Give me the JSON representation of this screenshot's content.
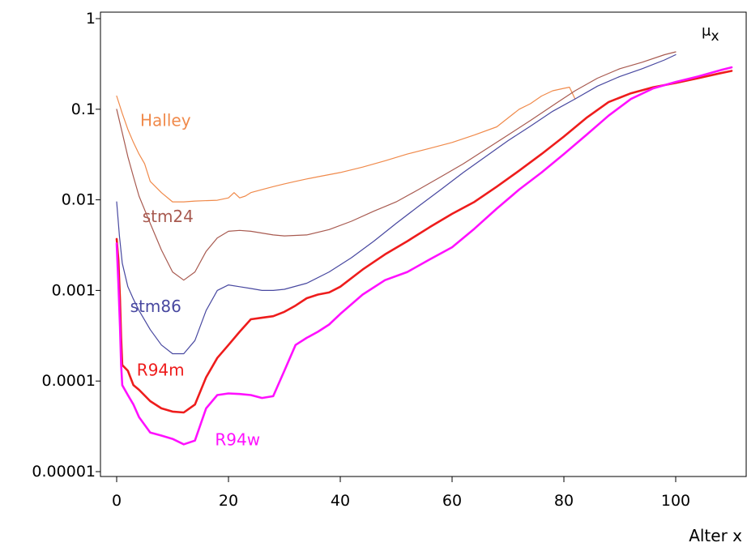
{
  "chart_data": {
    "type": "line",
    "title": "",
    "xlabel": "Alter x",
    "ylabel": "μx",
    "ylabel_main": "μ",
    "ylabel_sub": "x",
    "xscale": "linear",
    "yscale": "log",
    "xlim": [
      -2,
      112
    ],
    "ylim": [
      1e-05,
      1
    ],
    "xticks": [
      0,
      20,
      40,
      60,
      80,
      100
    ],
    "xtick_labels": [
      "0",
      "20",
      "40",
      "60",
      "80",
      "100"
    ],
    "yticks": [
      1e-05,
      0.0001,
      0.001,
      0.01,
      0.1,
      1
    ],
    "ytick_labels": [
      "0.00001",
      "0.0001",
      "0.001",
      "0.01",
      "0.1",
      "1"
    ],
    "grid": false,
    "legend": "inline labels",
    "series": [
      {
        "name": "Halley",
        "color": "#f08a4b",
        "width": "thin",
        "label_at": [
          4.2,
          0.065
        ],
        "points": [
          [
            0,
            0.14
          ],
          [
            1,
            0.09
          ],
          [
            2,
            0.06
          ],
          [
            3,
            0.043
          ],
          [
            4,
            0.032
          ],
          [
            5,
            0.025
          ],
          [
            6,
            0.016
          ],
          [
            8,
            0.012
          ],
          [
            10,
            0.0095
          ],
          [
            12,
            0.0095
          ],
          [
            14,
            0.0097
          ],
          [
            18,
            0.0099
          ],
          [
            20,
            0.0105
          ],
          [
            21,
            0.012
          ],
          [
            22,
            0.0105
          ],
          [
            23,
            0.011
          ],
          [
            24,
            0.012
          ],
          [
            26,
            0.013
          ],
          [
            28,
            0.014
          ],
          [
            30,
            0.015
          ],
          [
            32,
            0.016
          ],
          [
            34,
            0.017
          ],
          [
            36,
            0.018
          ],
          [
            40,
            0.02
          ],
          [
            44,
            0.023
          ],
          [
            48,
            0.027
          ],
          [
            52,
            0.032
          ],
          [
            56,
            0.037
          ],
          [
            60,
            0.043
          ],
          [
            64,
            0.052
          ],
          [
            68,
            0.064
          ],
          [
            70,
            0.08
          ],
          [
            72,
            0.1
          ],
          [
            74,
            0.115
          ],
          [
            76,
            0.14
          ],
          [
            78,
            0.16
          ],
          [
            80,
            0.17
          ],
          [
            81,
            0.175
          ],
          [
            82,
            0.13
          ]
        ]
      },
      {
        "name": "stm24",
        "color": "#a85a50",
        "width": "thin",
        "label_at": [
          4.6,
          0.0057
        ],
        "points": [
          [
            0,
            0.1
          ],
          [
            1,
            0.055
          ],
          [
            2,
            0.03
          ],
          [
            3,
            0.018
          ],
          [
            4,
            0.011
          ],
          [
            6,
            0.0055
          ],
          [
            8,
            0.0028
          ],
          [
            10,
            0.0016
          ],
          [
            12,
            0.0013
          ],
          [
            14,
            0.0016
          ],
          [
            16,
            0.0027
          ],
          [
            18,
            0.0038
          ],
          [
            20,
            0.0045
          ],
          [
            22,
            0.0046
          ],
          [
            24,
            0.0045
          ],
          [
            26,
            0.0043
          ],
          [
            28,
            0.0041
          ],
          [
            30,
            0.004
          ],
          [
            34,
            0.0041
          ],
          [
            38,
            0.0047
          ],
          [
            42,
            0.0058
          ],
          [
            46,
            0.0075
          ],
          [
            50,
            0.0095
          ],
          [
            54,
            0.013
          ],
          [
            58,
            0.018
          ],
          [
            62,
            0.025
          ],
          [
            66,
            0.036
          ],
          [
            70,
            0.052
          ],
          [
            74,
            0.075
          ],
          [
            78,
            0.11
          ],
          [
            82,
            0.16
          ],
          [
            86,
            0.22
          ],
          [
            90,
            0.28
          ],
          [
            94,
            0.33
          ],
          [
            98,
            0.4
          ],
          [
            100,
            0.43
          ]
        ]
      },
      {
        "name": "stm86",
        "color": "#4848a0",
        "width": "thin",
        "label_at": [
          2.4,
          0.00058
        ],
        "points": [
          [
            0,
            0.0095
          ],
          [
            0.5,
            0.004
          ],
          [
            1,
            0.002
          ],
          [
            2,
            0.0011
          ],
          [
            3,
            0.0008
          ],
          [
            4,
            0.0006
          ],
          [
            6,
            0.00037
          ],
          [
            8,
            0.00025
          ],
          [
            10,
            0.0002
          ],
          [
            12,
            0.0002
          ],
          [
            14,
            0.00028
          ],
          [
            16,
            0.0006
          ],
          [
            18,
            0.001
          ],
          [
            20,
            0.00115
          ],
          [
            22,
            0.0011
          ],
          [
            24,
            0.00105
          ],
          [
            26,
            0.001
          ],
          [
            28,
            0.001
          ],
          [
            30,
            0.00103
          ],
          [
            34,
            0.0012
          ],
          [
            38,
            0.0016
          ],
          [
            42,
            0.0023
          ],
          [
            46,
            0.0035
          ],
          [
            50,
            0.0055
          ],
          [
            54,
            0.0085
          ],
          [
            58,
            0.013
          ],
          [
            62,
            0.02
          ],
          [
            66,
            0.03
          ],
          [
            70,
            0.045
          ],
          [
            74,
            0.065
          ],
          [
            78,
            0.095
          ],
          [
            82,
            0.13
          ],
          [
            86,
            0.18
          ],
          [
            90,
            0.23
          ],
          [
            94,
            0.28
          ],
          [
            98,
            0.35
          ],
          [
            100,
            0.4
          ]
        ]
      },
      {
        "name": "R94m",
        "color": "#ee1c1c",
        "width": "thick",
        "label_at": [
          3.6,
          0.000115
        ],
        "points": [
          [
            0,
            0.0037
          ],
          [
            0.3,
            0.0022
          ],
          [
            0.6,
            0.0008
          ],
          [
            0.8,
            0.0003
          ],
          [
            1,
            0.00015
          ],
          [
            1.5,
            0.00014
          ],
          [
            2,
            0.00013
          ],
          [
            3,
            9e-05
          ],
          [
            4,
            8e-05
          ],
          [
            6,
            6e-05
          ],
          [
            8,
            5e-05
          ],
          [
            10,
            4.6e-05
          ],
          [
            12,
            4.5e-05
          ],
          [
            14,
            5.5e-05
          ],
          [
            16,
            0.00011
          ],
          [
            18,
            0.00018
          ],
          [
            20,
            0.00025
          ],
          [
            22,
            0.00035
          ],
          [
            24,
            0.00048
          ],
          [
            26,
            0.0005
          ],
          [
            28,
            0.00052
          ],
          [
            30,
            0.00058
          ],
          [
            32,
            0.00068
          ],
          [
            34,
            0.00082
          ],
          [
            36,
            0.0009
          ],
          [
            38,
            0.00095
          ],
          [
            40,
            0.0011
          ],
          [
            44,
            0.0017
          ],
          [
            48,
            0.0025
          ],
          [
            52,
            0.0035
          ],
          [
            56,
            0.005
          ],
          [
            60,
            0.007
          ],
          [
            64,
            0.0095
          ],
          [
            68,
            0.014
          ],
          [
            72,
            0.021
          ],
          [
            76,
            0.032
          ],
          [
            80,
            0.05
          ],
          [
            84,
            0.08
          ],
          [
            88,
            0.12
          ],
          [
            92,
            0.15
          ],
          [
            96,
            0.175
          ],
          [
            100,
            0.195
          ],
          [
            104,
            0.22
          ],
          [
            108,
            0.25
          ],
          [
            110,
            0.265
          ]
        ]
      },
      {
        "name": "R94w",
        "color": "#ff10ff",
        "width": "thick",
        "label_at": [
          17.6,
          1.95e-05
        ],
        "points": [
          [
            0,
            0.0033
          ],
          [
            0.3,
            0.0012
          ],
          [
            0.6,
            0.0004
          ],
          [
            0.8,
            0.00015
          ],
          [
            1,
            9e-05
          ],
          [
            2,
            7e-05
          ],
          [
            3,
            5.5e-05
          ],
          [
            4,
            4e-05
          ],
          [
            6,
            2.7e-05
          ],
          [
            8,
            2.5e-05
          ],
          [
            10,
            2.3e-05
          ],
          [
            12,
            2e-05
          ],
          [
            14,
            2.2e-05
          ],
          [
            16,
            5e-05
          ],
          [
            18,
            7e-05
          ],
          [
            20,
            7.3e-05
          ],
          [
            22,
            7.2e-05
          ],
          [
            24,
            7e-05
          ],
          [
            26,
            6.5e-05
          ],
          [
            28,
            6.8e-05
          ],
          [
            30,
            0.00013
          ],
          [
            32,
            0.00025
          ],
          [
            34,
            0.0003
          ],
          [
            36,
            0.00035
          ],
          [
            38,
            0.00042
          ],
          [
            40,
            0.00055
          ],
          [
            44,
            0.0009
          ],
          [
            48,
            0.0013
          ],
          [
            52,
            0.0016
          ],
          [
            56,
            0.0022
          ],
          [
            60,
            0.003
          ],
          [
            64,
            0.0048
          ],
          [
            68,
            0.008
          ],
          [
            72,
            0.013
          ],
          [
            76,
            0.02
          ],
          [
            80,
            0.032
          ],
          [
            84,
            0.052
          ],
          [
            88,
            0.085
          ],
          [
            92,
            0.13
          ],
          [
            96,
            0.17
          ],
          [
            100,
            0.2
          ],
          [
            104,
            0.23
          ],
          [
            108,
            0.27
          ],
          [
            110,
            0.29
          ]
        ]
      }
    ]
  }
}
